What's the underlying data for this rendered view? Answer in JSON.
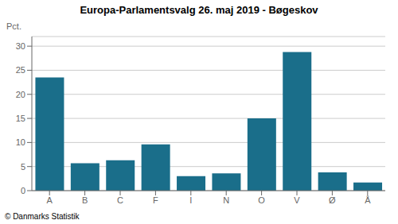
{
  "chart_data": {
    "type": "bar",
    "title": "Europa-Parlamentsvalg 26. maj 2019 - Bøgeskov",
    "categories": [
      "A",
      "B",
      "C",
      "F",
      "I",
      "N",
      "O",
      "V",
      "Ø",
      "Å"
    ],
    "values": [
      23.5,
      5.7,
      6.3,
      9.6,
      3.0,
      3.6,
      15.0,
      28.8,
      3.8,
      1.7
    ],
    "color": "#1a6e8a",
    "ylabel": "Pct.",
    "ylim": [
      0,
      32
    ],
    "yticks": [
      0,
      5,
      10,
      15,
      20,
      25,
      30
    ],
    "grid": true,
    "annotations": [
      "© Danmarks Statistik"
    ]
  }
}
